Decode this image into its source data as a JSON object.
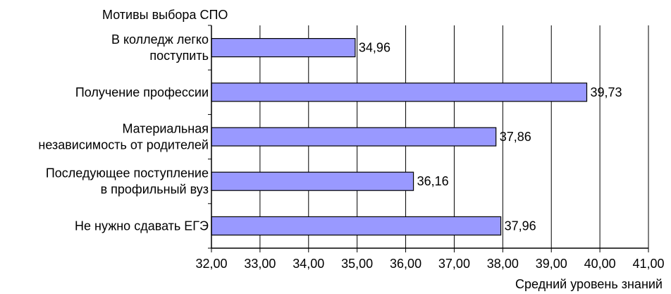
{
  "chart_data": {
    "type": "bar",
    "orientation": "horizontal",
    "title": "Мотивы выбора СПО",
    "xlabel": "Средний уровень знаний",
    "ylabel": "",
    "xlim": [
      32,
      41
    ],
    "ticks": [
      "32,00",
      "33,00",
      "34,00",
      "35,00",
      "36,00",
      "37,00",
      "38,00",
      "39,00",
      "40,00",
      "41,00"
    ],
    "grid": true,
    "legend": "none",
    "bar_color": "#9999ff",
    "categories": [
      {
        "label_lines": [
          "В колледж легко",
          "поступить"
        ],
        "value": 34.96,
        "value_label": "34,96"
      },
      {
        "label_lines": [
          "Получение профессии"
        ],
        "value": 39.73,
        "value_label": "39,73"
      },
      {
        "label_lines": [
          "Материальная",
          "независимость от родителей"
        ],
        "value": 37.86,
        "value_label": "37,86"
      },
      {
        "label_lines": [
          "Последующее поступление",
          "в профильный вуз"
        ],
        "value": 36.16,
        "value_label": "36,16"
      },
      {
        "label_lines": [
          "Не нужно сдавать ЕГЭ"
        ],
        "value": 37.96,
        "value_label": "37,96"
      }
    ]
  }
}
